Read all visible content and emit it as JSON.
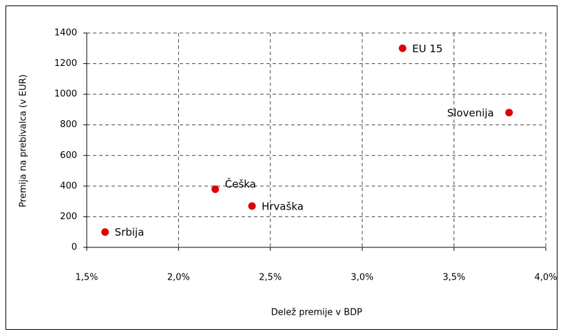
{
  "chart_data": {
    "type": "scatter",
    "x_label": "Delež premije v BDP",
    "y_label": "Premija na prebivalca (v EUR)",
    "point_labels": [
      "Srbija",
      "Češka",
      "Hrvaška",
      "EU 15",
      "Slovenija"
    ],
    "x": [
      1.6,
      2.2,
      2.4,
      3.22,
      3.8
    ],
    "values": [
      100,
      380,
      270,
      1300,
      880
    ],
    "color": "#e00000",
    "xlim": [
      1.5,
      4.0
    ],
    "xticks": [
      {
        "value": 1.5,
        "label": "1,5%"
      },
      {
        "value": 2.0,
        "label": "2,0%"
      },
      {
        "value": 2.5,
        "label": "2,5%"
      },
      {
        "value": 3.0,
        "label": "3,0%"
      },
      {
        "value": 3.5,
        "label": "3,5%"
      },
      {
        "value": 4.0,
        "label": "4,0%"
      }
    ],
    "ylim": [
      0,
      1400
    ],
    "yticks": [
      0,
      200,
      400,
      600,
      800,
      1000,
      1200,
      1400
    ],
    "grid": true
  }
}
